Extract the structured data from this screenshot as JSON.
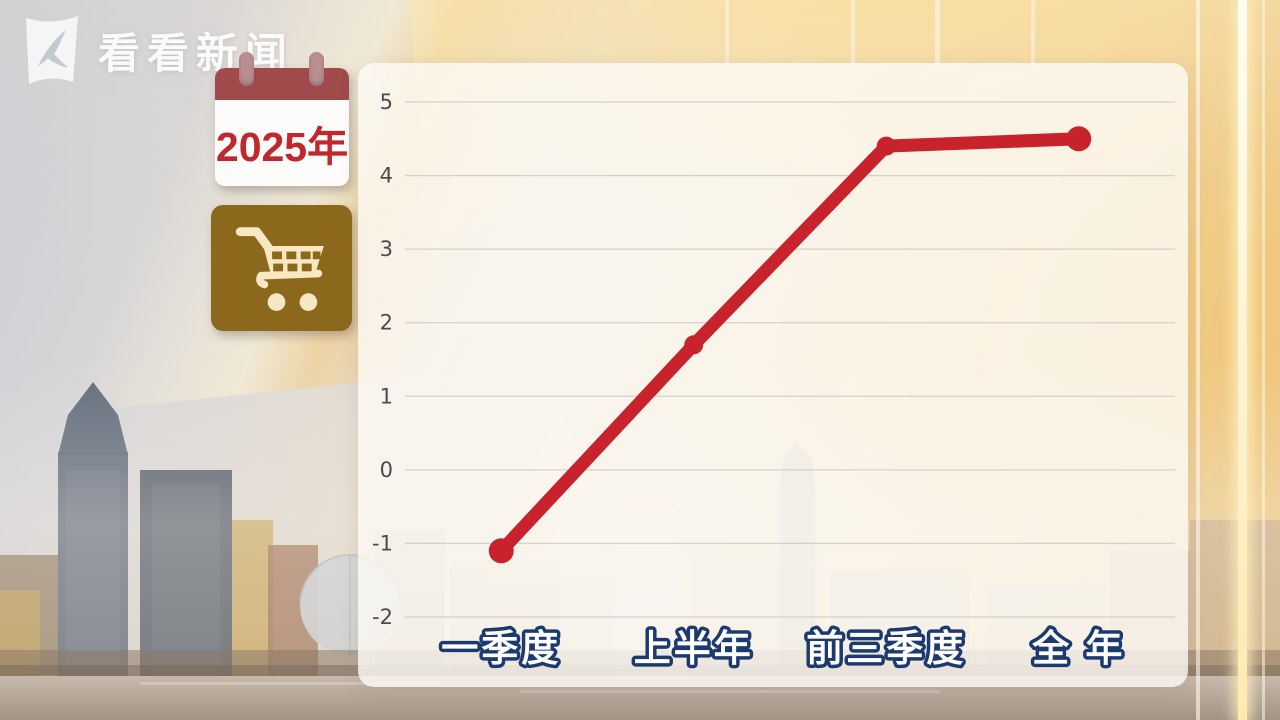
{
  "brand": {
    "logo_text": "看看新闻",
    "logo_icon": "kankan-logo-icon"
  },
  "badges": {
    "year_calendar": {
      "label": "2025年",
      "icon": "calendar-icon"
    },
    "topic": {
      "icon": "shopping-cart-icon"
    }
  },
  "chart_data": {
    "type": "line",
    "categories": [
      "一季度",
      "上半年",
      "前三季度",
      "全 年"
    ],
    "values": [
      -1.1,
      1.7,
      4.4,
      4.5
    ],
    "title": "",
    "xlabel": "",
    "ylabel": "",
    "ylim": [
      -2,
      5
    ],
    "yticks": [
      5,
      4,
      3,
      2,
      1,
      0,
      -1,
      -2
    ],
    "grid": true,
    "legend": "none",
    "line_color": "#c8232c",
    "grid_color": "#b9b6b2",
    "tick_color": "#4b4b4b",
    "label_fill": "#ffffff",
    "label_stroke": "#1c3a6d"
  },
  "colors": {
    "accent_red": "#c8232c",
    "calendar_header": "#a04a4c",
    "calendar_text": "#c1272d",
    "cart_background": "#8c681d",
    "cart_glyph": "#f7e7c2",
    "gold_glow": "#f0c36a"
  }
}
